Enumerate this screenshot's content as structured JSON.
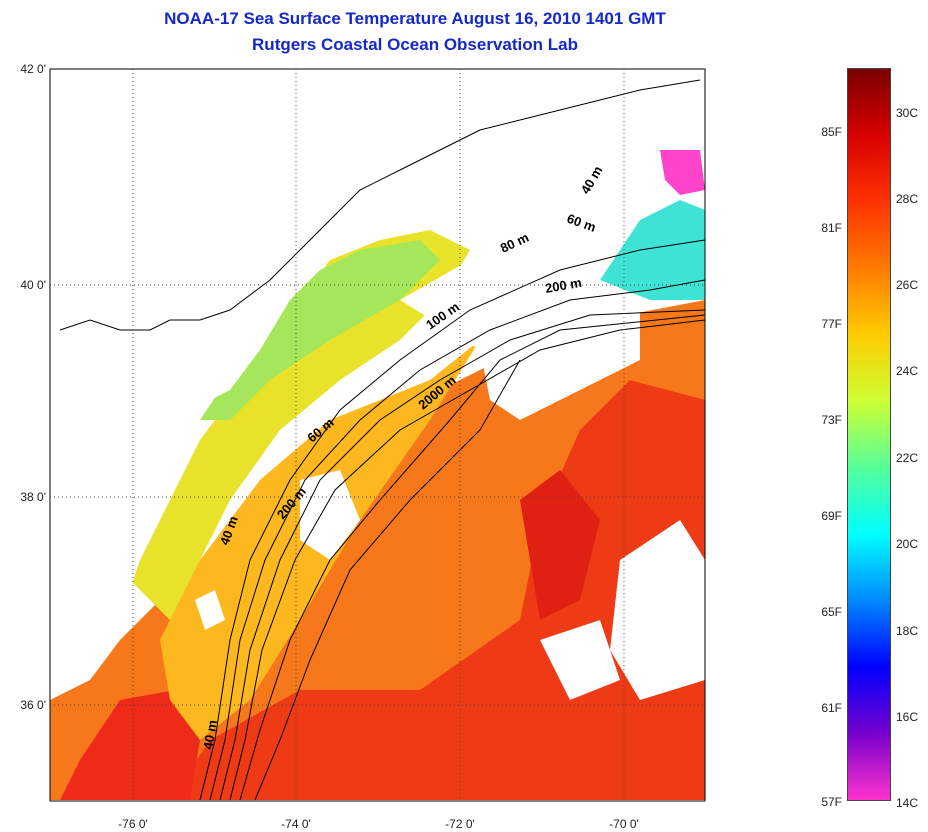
{
  "title": {
    "line1": "NOAA-17 Sea Surface Temperature August 16, 2010 1401 GMT",
    "line2": "Rutgers Coastal Ocean Observation Lab"
  },
  "axes": {
    "lat_labels": [
      "42 0'",
      "40 0'",
      "38 0'",
      "36 0'"
    ],
    "lon_labels": [
      "-76 0'",
      "-74 0'",
      "-72 0'",
      "-70 0'"
    ]
  },
  "contours": {
    "labels": [
      "40 m",
      "60 m",
      "80 m",
      "200 m",
      "100 m",
      "2000 m",
      "60 m",
      "200 m",
      "40 m",
      "40 m"
    ]
  },
  "colorbar": {
    "f_labels": [
      "85F",
      "81F",
      "77F",
      "73F",
      "69F",
      "65F",
      "61F",
      "57F"
    ],
    "c_labels": [
      "30C",
      "28C",
      "26C",
      "24C",
      "22C",
      "20C",
      "18C",
      "16C",
      "14C"
    ],
    "colors": [
      "#7a0000",
      "#d80000",
      "#ff3300",
      "#ff7a00",
      "#ffcc00",
      "#ccff33",
      "#55ff99",
      "#00ffff",
      "#0088ff",
      "#0000ff",
      "#7700cc",
      "#ff33cc"
    ]
  },
  "land_color": "#ffffff",
  "sst_colors": {
    "warmest": "#ee2a18",
    "warm": "#f7781a",
    "mid": "#fdb820",
    "cool": "#e8e22a",
    "cooler": "#a6e65a",
    "cold": "#3fe3d6"
  }
}
